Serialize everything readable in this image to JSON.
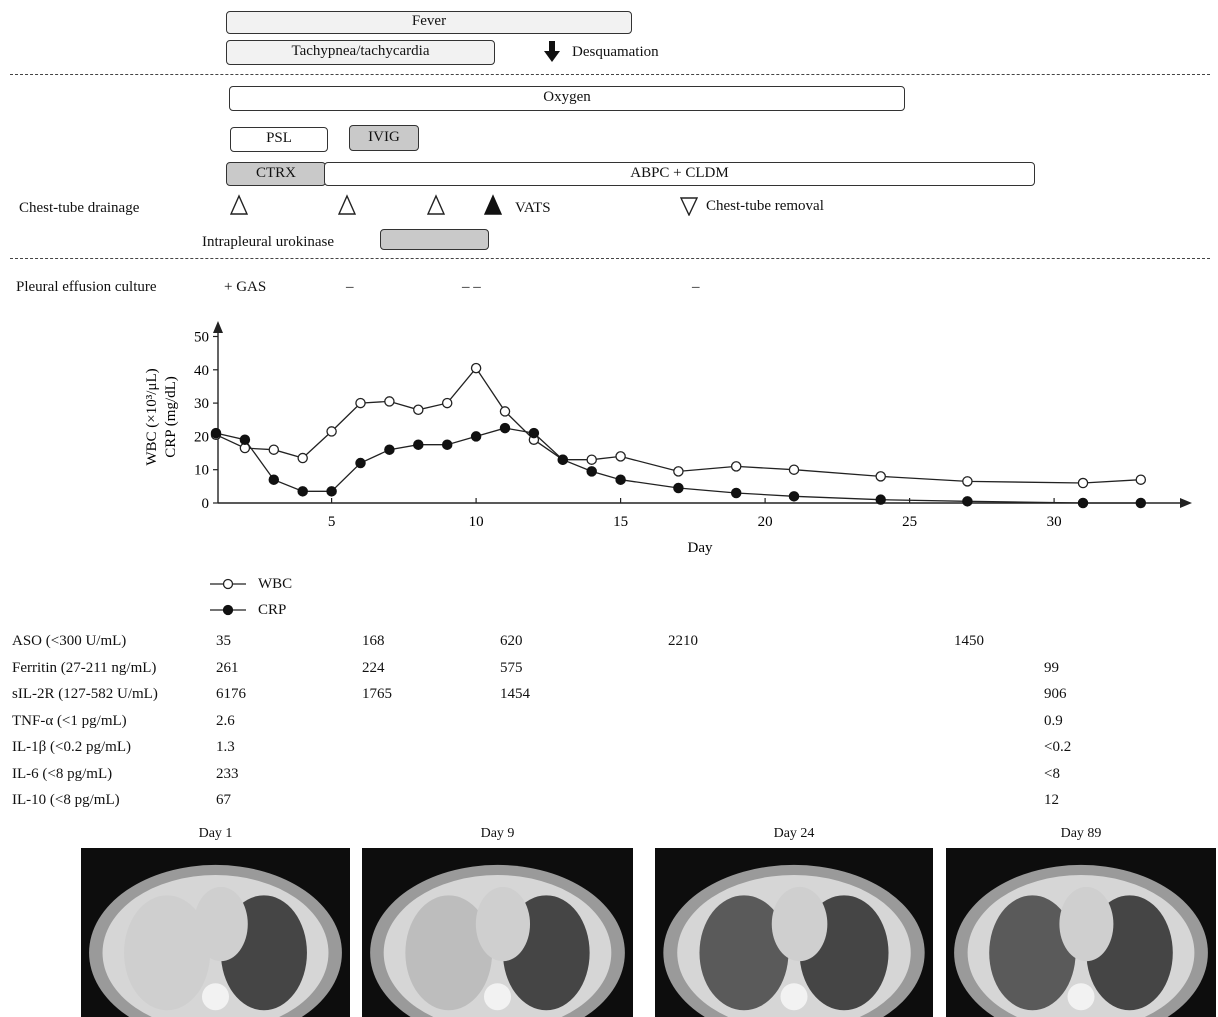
{
  "symptoms": {
    "fever": "Fever",
    "tachy": "Tachypnea/tachycardia",
    "desquamation": "Desquamation"
  },
  "treatment": {
    "oxygen": "Oxygen",
    "psl": "PSL",
    "ivig": "IVIG",
    "ctrx": "CTRX",
    "abpc": "ABPC + CLDM",
    "chest_tube_label": "Chest-tube drainage",
    "vats": "VATS",
    "chest_tube_removal": "Chest-tube removal",
    "urokinase": "Intrapleural urokinase"
  },
  "culture": {
    "label": "Pleural effusion culture",
    "results": [
      "+ GAS",
      "–",
      "– –",
      "–"
    ]
  },
  "chart_data": {
    "type": "line",
    "xlabel": "Day",
    "ylabel_lines": [
      "WBC (×10³/μL)",
      "CRP (mg/dL)"
    ],
    "xlim": [
      0.5,
      34.5
    ],
    "ylim": [
      0,
      50
    ],
    "xticks": [
      5,
      10,
      15,
      20,
      25,
      30
    ],
    "yticks": [
      0,
      10,
      20,
      30,
      40,
      50
    ],
    "series": [
      {
        "name": "WBC",
        "marker": "open",
        "points": [
          [
            1,
            20.5
          ],
          [
            2,
            16.5
          ],
          [
            3,
            16
          ],
          [
            4,
            13.5
          ],
          [
            5,
            21.5
          ],
          [
            6,
            30
          ],
          [
            7,
            30.5
          ],
          [
            8,
            28
          ],
          [
            9,
            30
          ],
          [
            10,
            40.5
          ],
          [
            11,
            27.5
          ],
          [
            12,
            19
          ],
          [
            13,
            13
          ],
          [
            14,
            13
          ],
          [
            15,
            14
          ],
          [
            17,
            9.5
          ],
          [
            19,
            11
          ],
          [
            21,
            10
          ],
          [
            24,
            8
          ],
          [
            27,
            6.5
          ],
          [
            31,
            6
          ],
          [
            33,
            7
          ]
        ]
      },
      {
        "name": "CRP",
        "marker": "filled",
        "points": [
          [
            1,
            21
          ],
          [
            2,
            19
          ],
          [
            3,
            7
          ],
          [
            4,
            3.5
          ],
          [
            5,
            3.5
          ],
          [
            6,
            12
          ],
          [
            7,
            16
          ],
          [
            8,
            17.5
          ],
          [
            9,
            17.5
          ],
          [
            10,
            20
          ],
          [
            11,
            22.5
          ],
          [
            12,
            21
          ],
          [
            13,
            13
          ],
          [
            14,
            9.5
          ],
          [
            15,
            7
          ],
          [
            17,
            4.5
          ],
          [
            19,
            3
          ],
          [
            21,
            2
          ],
          [
            24,
            1
          ],
          [
            27,
            0.5
          ],
          [
            31,
            0
          ],
          [
            33,
            0
          ]
        ]
      }
    ]
  },
  "legend": {
    "wbc": "WBC",
    "crp": "CRP"
  },
  "labs": [
    {
      "label": "ASO (<300 U/mL)",
      "values": [
        "35",
        "168",
        "620",
        "2210",
        "1450",
        ""
      ]
    },
    {
      "label": "Ferritin (27-211 ng/mL)",
      "values": [
        "261",
        "224",
        "575",
        "",
        "",
        "99"
      ]
    },
    {
      "label": "sIL-2R (127-582 U/mL)",
      "values": [
        "6176",
        "1765",
        "1454",
        "",
        "",
        "906"
      ]
    },
    {
      "label": "TNF-α (<1 pg/mL)",
      "values": [
        "2.6",
        "",
        "",
        "",
        "",
        "0.9"
      ]
    },
    {
      "label": "IL-1β (<0.2 pg/mL)",
      "values": [
        "1.3",
        "",
        "",
        "",
        "",
        "<0.2"
      ]
    },
    {
      "label": "IL-6 (<8 pg/mL)",
      "values": [
        "233",
        "",
        "",
        "",
        "",
        "<8"
      ]
    },
    {
      "label": "IL-10 (<8 pg/mL)",
      "values": [
        "67",
        "",
        "",
        "",
        "",
        "12"
      ]
    }
  ],
  "ct_images": [
    {
      "caption": "Day 1"
    },
    {
      "caption": "Day 9"
    },
    {
      "caption": "Day 24"
    },
    {
      "caption": "Day 89"
    }
  ]
}
